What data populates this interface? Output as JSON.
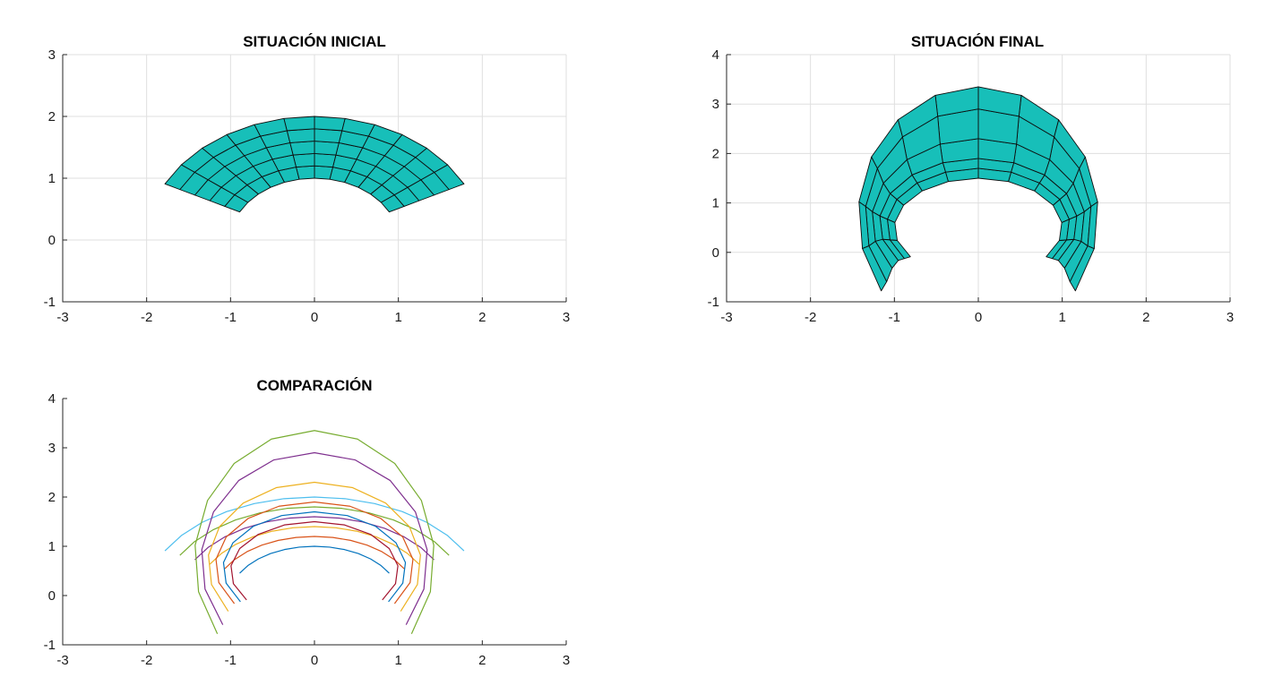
{
  "chart_data": [
    {
      "type": "mesh",
      "title": "SITUACIÓN INICIAL",
      "xlim": [
        -3,
        3
      ],
      "ylim": [
        -1,
        3
      ],
      "xticks": [
        "-3",
        "-2",
        "-1",
        "0",
        "1",
        "2",
        "3"
      ],
      "yticks": [
        "-1",
        "0",
        "1",
        "2",
        "3"
      ],
      "grid": true,
      "face_color": "#17bfb9",
      "edge_color": "#0d0d0d",
      "mesh": {
        "radii": [
          1.0,
          1.2,
          1.4,
          1.6,
          1.8,
          2.0
        ],
        "angle_start_deg": 27,
        "angle_end_deg": 153,
        "radial_lines": 13,
        "center": [
          0,
          0
        ]
      }
    },
    {
      "type": "mesh",
      "title": "SITUACIÓN FINAL",
      "xlim": [
        -3,
        3
      ],
      "ylim": [
        -1,
        4
      ],
      "xticks": [
        "-3",
        "-2",
        "-1",
        "0",
        "1",
        "2",
        "3"
      ],
      "yticks": [
        "-1",
        "0",
        "1",
        "2",
        "3",
        "4"
      ],
      "grid": true,
      "face_color": "#17bfb9",
      "edge_color": "#0d0d0d",
      "mesh": {
        "contours": [
          {
            "cy": 0.5,
            "rx": 1.0,
            "ry": 1.0
          },
          {
            "cy": 0.55,
            "rx": 1.09,
            "ry": 1.15
          },
          {
            "cy": 0.6,
            "rx": 1.18,
            "ry": 1.3
          },
          {
            "cy": 0.65,
            "rx": 1.27,
            "ry": 1.65
          },
          {
            "cy": 0.7,
            "rx": 1.35,
            "ry": 2.2
          },
          {
            "cy": 0.75,
            "rx": 1.43,
            "ry": 2.6
          }
        ],
        "angle_start_deg": -36,
        "angle_end_deg": 216,
        "radial_lines": 13
      }
    },
    {
      "type": "line",
      "title": "COMPARACIÓN",
      "xlim": [
        -3,
        3
      ],
      "ylim": [
        -1,
        4
      ],
      "xticks": [
        "-3",
        "-2",
        "-1",
        "0",
        "1",
        "2",
        "3"
      ],
      "yticks": [
        "-1",
        "0",
        "1",
        "2",
        "3",
        "4"
      ],
      "grid": false,
      "series": [
        {
          "group": "initial",
          "color": "#0072bd",
          "r": 1.0
        },
        {
          "group": "initial",
          "color": "#d95319",
          "r": 1.2
        },
        {
          "group": "initial",
          "color": "#edb120",
          "r": 1.4
        },
        {
          "group": "initial",
          "color": "#7e2f8e",
          "r": 1.6
        },
        {
          "group": "initial",
          "color": "#77ac30",
          "r": 1.8
        },
        {
          "group": "initial",
          "color": "#4dbeee",
          "r": 2.0
        },
        {
          "group": "final",
          "color": "#a2142f",
          "cy": 0.5,
          "rx": 1.0,
          "ry": 1.0
        },
        {
          "group": "final",
          "color": "#0072bd",
          "cy": 0.55,
          "rx": 1.09,
          "ry": 1.15
        },
        {
          "group": "final",
          "color": "#d95319",
          "cy": 0.6,
          "rx": 1.18,
          "ry": 1.3
        },
        {
          "group": "final",
          "color": "#edb120",
          "cy": 0.65,
          "rx": 1.27,
          "ry": 1.65
        },
        {
          "group": "final",
          "color": "#7e2f8e",
          "cy": 0.7,
          "rx": 1.35,
          "ry": 2.2
        },
        {
          "group": "final",
          "color": "#77ac30",
          "cy": 0.75,
          "rx": 1.43,
          "ry": 2.6
        }
      ],
      "initial_angle_deg": [
        27,
        153
      ],
      "final_angle_deg": [
        -36,
        216
      ]
    }
  ]
}
